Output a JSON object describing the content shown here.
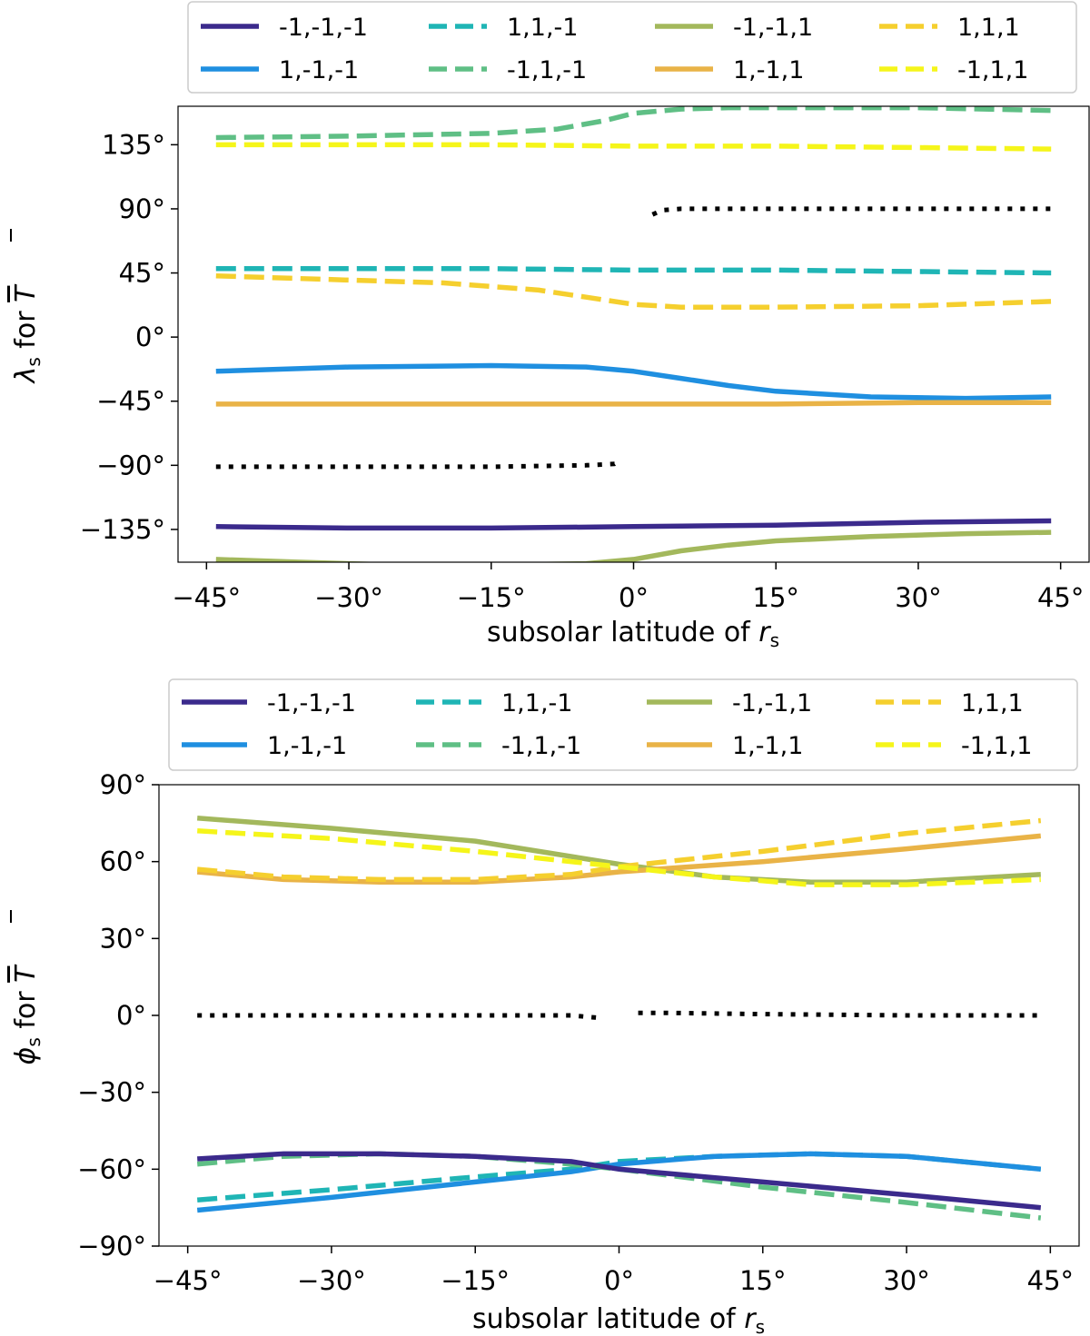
{
  "chart_data": [
    {
      "type": "line",
      "id": "top",
      "xlabel": "subsolar latitude of",
      "xlabel_var": "r",
      "xlabel_sub": "s",
      "ylabel_var": "λ",
      "ylabel_sub": "s",
      "ylabel_rest": "for",
      "ylabel_T": "T",
      "xlim": [
        -48,
        48
      ],
      "ylim": [
        -158,
        162
      ],
      "xticks": [
        -45,
        -30,
        -15,
        0,
        15,
        30,
        45
      ],
      "xtick_labels": [
        "−45°",
        "−30°",
        "−15°",
        "0°",
        "15°",
        "30°",
        "45°"
      ],
      "yticks": [
        135,
        90,
        45,
        0,
        -45,
        -90,
        -135
      ],
      "ytick_labels": [
        "135°",
        "90°",
        "45°",
        "0°",
        "−45°",
        "−90°",
        "−135°"
      ],
      "legend_position": "top",
      "legend": [
        {
          "label": "-1,-1,-1",
          "color": "#3b2a8c",
          "dash": "solid"
        },
        {
          "label": "1,-1,-1",
          "color": "#1f8fe0",
          "dash": "solid"
        },
        {
          "label": "1,1,-1",
          "color": "#1fb5b5",
          "dash": "dashed"
        },
        {
          "label": "-1,1,-1",
          "color": "#5fbf85",
          "dash": "dashed"
        },
        {
          "label": "-1,-1,1",
          "color": "#a3b85c",
          "dash": "solid"
        },
        {
          "label": "1,-1,1",
          "color": "#e9b347",
          "dash": "solid"
        },
        {
          "label": "1,1,1",
          "color": "#f5cf2e",
          "dash": "dashed"
        },
        {
          "label": "-1,1,1",
          "color": "#f5f51a",
          "dash": "dashed"
        }
      ],
      "series": [
        {
          "name": "-1,-1,-1",
          "color": "#3b2a8c",
          "dash": "solid",
          "x": [
            -44,
            -30,
            -15,
            0,
            15,
            30,
            44
          ],
          "y": [
            -133,
            -134,
            -134,
            -133,
            -132,
            -130,
            -129
          ]
        },
        {
          "name": "1,-1,-1",
          "color": "#1f8fe0",
          "dash": "solid",
          "x": [
            -44,
            -30,
            -15,
            -5,
            0,
            5,
            10,
            15,
            25,
            35,
            44
          ],
          "y": [
            -24,
            -21,
            -20,
            -21,
            -24,
            -29,
            -34,
            -38,
            -42,
            -43,
            -42
          ]
        },
        {
          "name": "1,1,-1",
          "color": "#1fb5b5",
          "dash": "dashed",
          "x": [
            -44,
            -30,
            -15,
            0,
            15,
            30,
            44
          ],
          "y": [
            48,
            48,
            48,
            47,
            47,
            46,
            45
          ]
        },
        {
          "name": "-1,1,-1",
          "color": "#5fbf85",
          "dash": "dashed",
          "x": [
            -44,
            -30,
            -15,
            -8,
            -3,
            0,
            5,
            10,
            20,
            30,
            44
          ],
          "y": [
            140,
            141,
            143,
            146,
            152,
            157,
            160,
            161,
            161,
            161,
            159
          ]
        },
        {
          "name": "-1,-1,1",
          "color": "#a3b85c",
          "dash": "solid",
          "x": [
            -44,
            -35,
            -25,
            -15,
            -5,
            0,
            5,
            10,
            15,
            25,
            35,
            44
          ],
          "y": [
            -156,
            -158,
            -160,
            -160,
            -159,
            -156,
            -150,
            -146,
            -143,
            -140,
            -138,
            -137
          ]
        },
        {
          "name": "1,-1,1",
          "color": "#e9b347",
          "dash": "solid",
          "x": [
            -44,
            -30,
            -15,
            0,
            15,
            30,
            44
          ],
          "y": [
            -47,
            -47,
            -47,
            -47,
            -47,
            -46,
            -46
          ]
        },
        {
          "name": "1,1,1",
          "color": "#f5cf2e",
          "dash": "dashed",
          "x": [
            -44,
            -30,
            -20,
            -10,
            -5,
            0,
            5,
            15,
            30,
            44
          ],
          "y": [
            43,
            40,
            38,
            33,
            28,
            23,
            21,
            21,
            22,
            25
          ]
        },
        {
          "name": "-1,1,1",
          "color": "#f5f51a",
          "dash": "dashed",
          "x": [
            -44,
            -30,
            -15,
            0,
            15,
            30,
            44
          ],
          "y": [
            135,
            135,
            135,
            134,
            134,
            133,
            132
          ]
        },
        {
          "name": "",
          "color": "#000000",
          "dash": "dotted",
          "x": [
            -44,
            -30,
            -15,
            -5,
            -2,
            -1.5
          ],
          "y": [
            -91,
            -91,
            -91,
            -90,
            -89,
            -87
          ]
        },
        {
          "name": "",
          "color": "#000000",
          "dash": "dotted",
          "x": [
            2,
            3,
            5,
            15,
            30,
            44
          ],
          "y": [
            86,
            89,
            90,
            90,
            90,
            90
          ]
        }
      ]
    },
    {
      "type": "line",
      "id": "bottom",
      "xlabel": "subsolar latitude of",
      "xlabel_var": "r",
      "xlabel_sub": "s",
      "ylabel_var": "ϕ",
      "ylabel_sub": "s",
      "ylabel_rest": "for",
      "ylabel_T": "T",
      "xlim": [
        -48,
        48
      ],
      "ylim": [
        -90,
        90
      ],
      "xticks": [
        -45,
        -30,
        -15,
        0,
        15,
        30,
        45
      ],
      "xtick_labels": [
        "−45°",
        "−30°",
        "−15°",
        "0°",
        "15°",
        "30°",
        "45°"
      ],
      "yticks": [
        90,
        60,
        30,
        0,
        -30,
        -60,
        -90
      ],
      "ytick_labels": [
        "90°",
        "60°",
        "30°",
        "0°",
        "−30°",
        "−60°",
        "−90°"
      ],
      "legend_position": "top",
      "legend": [
        {
          "label": "-1,-1,-1",
          "color": "#3b2a8c",
          "dash": "solid"
        },
        {
          "label": "1,-1,-1",
          "color": "#1f8fe0",
          "dash": "solid"
        },
        {
          "label": "1,1,-1",
          "color": "#1fb5b5",
          "dash": "dashed"
        },
        {
          "label": "-1,1,-1",
          "color": "#5fbf85",
          "dash": "dashed"
        },
        {
          "label": "-1,-1,1",
          "color": "#a3b85c",
          "dash": "solid"
        },
        {
          "label": "1,-1,1",
          "color": "#e9b347",
          "dash": "solid"
        },
        {
          "label": "1,1,1",
          "color": "#f5cf2e",
          "dash": "dashed"
        },
        {
          "label": "-1,1,1",
          "color": "#f5f51a",
          "dash": "dashed"
        }
      ],
      "series": [
        {
          "name": "-1,-1,1",
          "color": "#a3b85c",
          "dash": "solid",
          "x": [
            -44,
            -30,
            -15,
            0,
            10,
            20,
            30,
            44
          ],
          "y": [
            77,
            73,
            68,
            59,
            54,
            52,
            52,
            55
          ]
        },
        {
          "name": "1,-1,1",
          "color": "#e9b347",
          "dash": "solid",
          "x": [
            -44,
            -35,
            -25,
            -15,
            -5,
            0,
            15,
            30,
            44
          ],
          "y": [
            56,
            53,
            52,
            52,
            54,
            56,
            60,
            65,
            70
          ]
        },
        {
          "name": "1,1,1",
          "color": "#f5cf2e",
          "dash": "dashed",
          "x": [
            -44,
            -35,
            -25,
            -15,
            -5,
            0,
            15,
            30,
            44
          ],
          "y": [
            57,
            54,
            53,
            53,
            55,
            58,
            64,
            71,
            76
          ]
        },
        {
          "name": "-1,1,1",
          "color": "#f5f51a",
          "dash": "dashed",
          "x": [
            -44,
            -30,
            -15,
            0,
            10,
            20,
            30,
            44
          ],
          "y": [
            72,
            69,
            64,
            58,
            54,
            51,
            51,
            53
          ]
        },
        {
          "name": "1,1,-1",
          "color": "#1fb5b5",
          "dash": "dashed",
          "x": [
            -44,
            -30,
            -15,
            -5,
            0,
            10,
            20,
            30,
            44
          ],
          "y": [
            -72,
            -68,
            -63,
            -60,
            -57,
            -55,
            -54,
            -55,
            -60
          ]
        },
        {
          "name": "1,-1,-1",
          "color": "#1f8fe0",
          "dash": "solid",
          "x": [
            -44,
            -30,
            -15,
            -5,
            0,
            10,
            20,
            30,
            44
          ],
          "y": [
            -76,
            -71,
            -65,
            -61,
            -58,
            -55,
            -54,
            -55,
            -60
          ]
        },
        {
          "name": "-1,1,-1",
          "color": "#5fbf85",
          "dash": "dashed",
          "x": [
            -44,
            -35,
            -25,
            -15,
            -5,
            0,
            15,
            30,
            44
          ],
          "y": [
            -58,
            -55,
            -54,
            -55,
            -58,
            -60,
            -67,
            -73,
            -79
          ]
        },
        {
          "name": "-1,-1,-1",
          "color": "#3b2a8c",
          "dash": "solid",
          "x": [
            -44,
            -35,
            -25,
            -15,
            -5,
            0,
            15,
            30,
            44
          ],
          "y": [
            -56,
            -54,
            -54,
            -55,
            -57,
            -60,
            -65,
            -70,
            -75
          ]
        },
        {
          "name": "",
          "color": "#000000",
          "dash": "dotted",
          "x": [
            -44,
            -30,
            -15,
            -5,
            -2
          ],
          "y": [
            0,
            0,
            0,
            0,
            -1
          ]
        },
        {
          "name": "",
          "color": "#000000",
          "dash": "dotted",
          "x": [
            2,
            5,
            15,
            30,
            44
          ],
          "y": [
            1,
            1,
            0.5,
            0,
            0
          ]
        }
      ]
    }
  ]
}
